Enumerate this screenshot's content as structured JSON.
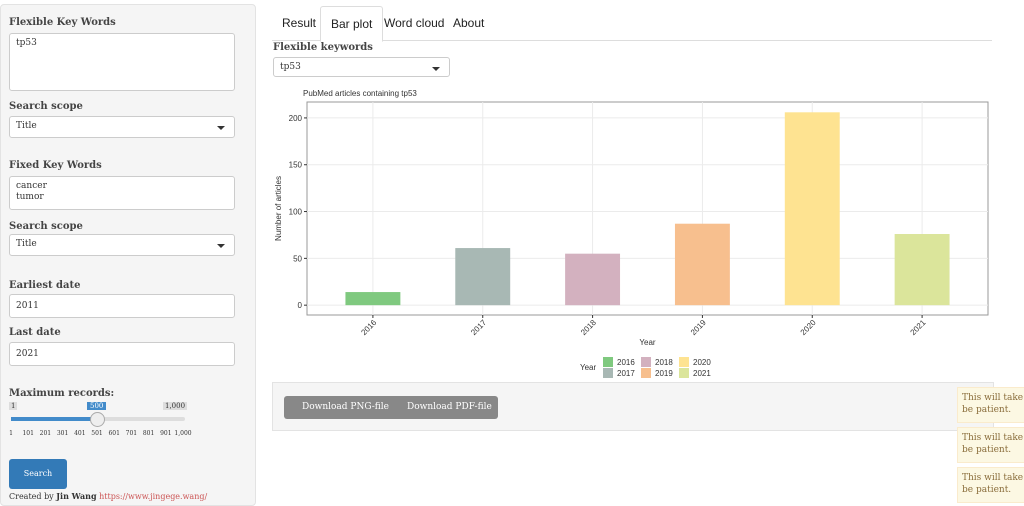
{
  "sidebar": {
    "flex_label": "Flexible Key Words",
    "flex_text": "tp53",
    "scope1_label": "Search scope",
    "scope1_value": "Title",
    "fixed_label": "Fixed Key Words",
    "fixed_lines": [
      "cancer",
      "tumor"
    ],
    "scope2_label": "Search scope",
    "scope2_value": "Title",
    "earliest_label": "Earliest date",
    "earliest_value": "2011",
    "last_label": "Last date",
    "last_value": "2021",
    "max_label": "Maximum records:",
    "slider_min": "1",
    "slider_value": "500",
    "slider_max": "1,000",
    "slider_ticks": [
      "1",
      "101",
      "201",
      "301",
      "401",
      "501",
      "601",
      "701",
      "801",
      "901",
      "1,000"
    ],
    "search_button": "Search",
    "footer_prefix": "Created by",
    "footer_name": "Jin Wang",
    "footer_link": "https://www.jingege.wang/"
  },
  "tabs": [
    "Result",
    "Bar plot",
    "Word cloud",
    "About"
  ],
  "main": {
    "select_label": "Flexible keywords",
    "select_value": "tp53",
    "download_png": "Download PNG-file",
    "download_pdf": "Download PDF-file"
  },
  "notifications": [
    [
      "This will take a",
      "be patient."
    ],
    [
      "This will take a",
      "be patient."
    ],
    [
      "This will take a",
      "be patient."
    ]
  ],
  "chart_data": {
    "type": "bar",
    "title": "PubMed articles containing tp53",
    "x_label": "Year",
    "y_label": "Number of articles",
    "legend_title": "Year",
    "categories": [
      "2016",
      "2017",
      "2018",
      "2019",
      "2020",
      "2021"
    ],
    "values": [
      14,
      61,
      55,
      87,
      206,
      76
    ],
    "colors": [
      "#7fc97f",
      "#a8b8b4",
      "#d3b1bf",
      "#f7bf8e",
      "#fee391",
      "#dbe59b"
    ],
    "ylim": [
      -10.5,
      217
    ],
    "yticks": [
      0,
      50,
      100,
      150,
      200
    ],
    "grid": true
  }
}
